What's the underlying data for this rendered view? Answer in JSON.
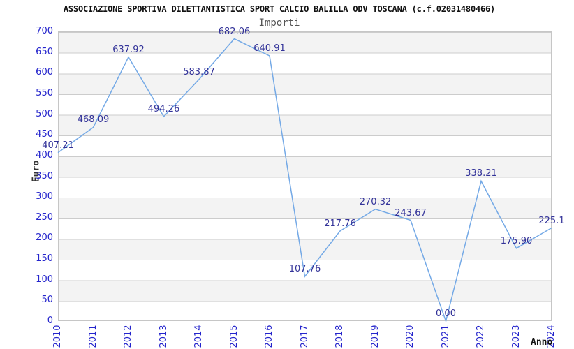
{
  "chart_data": {
    "type": "line",
    "title": "ASSOCIAZIONE SPORTIVA DILETTANTISTICA SPORT CALCIO BALILLA ODV TOSCANA (c.f.02031480466)",
    "subtitle": "Importi",
    "xlabel": "Anno",
    "ylabel": "Euro",
    "categories": [
      "2010",
      "2011",
      "2012",
      "2013",
      "2014",
      "2015",
      "2016",
      "2017",
      "2018",
      "2019",
      "2020",
      "2021",
      "2022",
      "2023",
      "2024"
    ],
    "values": [
      407.21,
      468.09,
      637.92,
      494.26,
      583.87,
      682.06,
      640.91,
      107.76,
      217.76,
      270.32,
      243.67,
      0.0,
      338.21,
      175.9,
      225.1
    ],
    "point_labels": [
      "407.21",
      "468.09",
      "637.92",
      "494.26",
      "583.87",
      "682.06",
      "640.91",
      "107.76",
      "217.76",
      "270.32",
      "243.67",
      "0.00",
      "338.21",
      "175.90",
      "225.1"
    ],
    "yticks": [
      0,
      50,
      100,
      150,
      200,
      250,
      300,
      350,
      400,
      450,
      500,
      550,
      600,
      650,
      700
    ],
    "ylim": [
      0,
      700
    ],
    "grid": true,
    "legend_position": "none",
    "band_pattern": "alternating gray/white every 50 units, gray band at top (700-650)",
    "colors": {
      "line": "#74a9e6",
      "tick_label": "#2424cc",
      "point_label": "#333399",
      "band_gray": "#f3f3f3",
      "gridline": "#cccccc",
      "title": "#111111",
      "subtitle": "#555555",
      "axis_title": "#333333",
      "background": "#ffffff"
    }
  }
}
